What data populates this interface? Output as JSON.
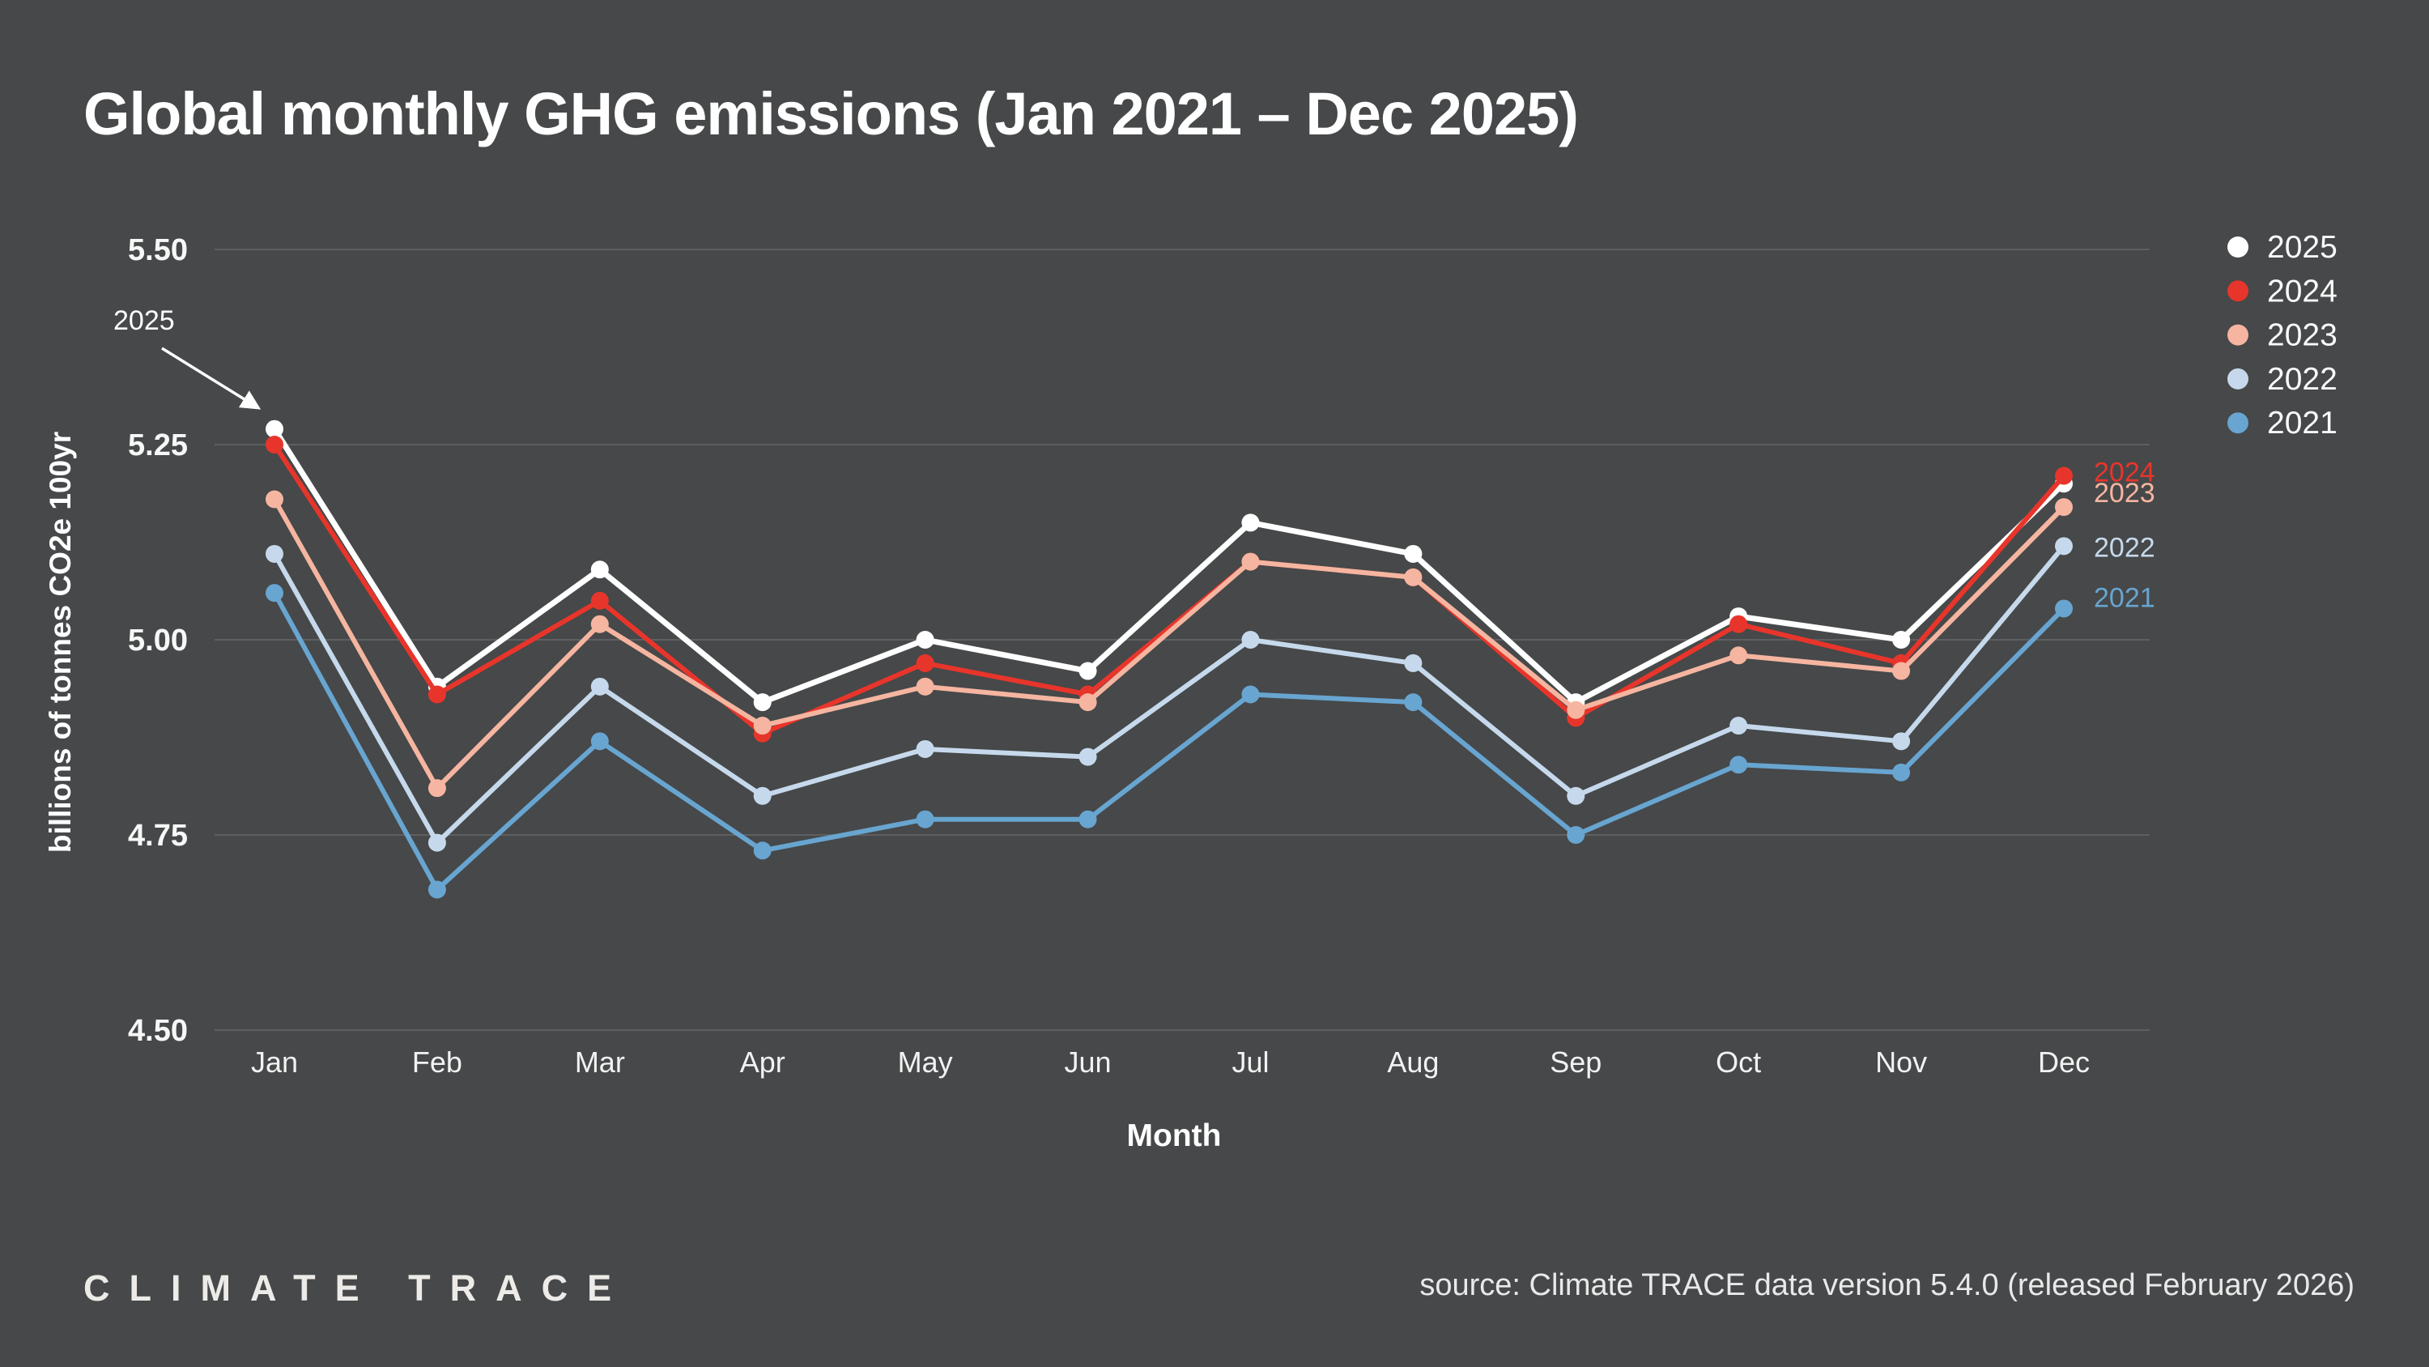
{
  "page": {
    "background": "#464849",
    "gridline_color": "#5d5f61"
  },
  "chart_data": {
    "type": "line",
    "title": "Global monthly GHG emissions (Jan 2021 – Dec 2025)",
    "xlabel": "Month",
    "ylabel": "billions of tonnes CO2e 100yr",
    "categories": [
      "Jan",
      "Feb",
      "Mar",
      "Apr",
      "May",
      "Jun",
      "Jul",
      "Aug",
      "Sep",
      "Oct",
      "Nov",
      "Dec"
    ],
    "ytick_labels": [
      "5.50",
      "5.25",
      "5.00",
      "4.75",
      "4.50"
    ],
    "ylim": [
      4.5,
      5.5
    ],
    "grid": "horizontal",
    "legend_position": "top-right",
    "series": [
      {
        "name": "2025",
        "color": "#ffffff",
        "values": [
          5.27,
          4.94,
          5.09,
          4.92,
          5.0,
          4.96,
          5.15,
          5.11,
          4.92,
          5.03,
          5.0,
          5.2
        ]
      },
      {
        "name": "2024",
        "color": "#e8352b",
        "values": [
          5.25,
          4.93,
          5.05,
          4.88,
          4.97,
          4.93,
          5.1,
          5.08,
          4.9,
          5.02,
          4.97,
          5.21
        ]
      },
      {
        "name": "2023",
        "color": "#f5b5a0",
        "values": [
          5.18,
          4.81,
          5.02,
          4.89,
          4.94,
          4.92,
          5.1,
          5.08,
          4.91,
          4.98,
          4.96,
          5.17
        ]
      },
      {
        "name": "2022",
        "color": "#c6d9ec",
        "values": [
          5.11,
          4.74,
          4.94,
          4.8,
          4.86,
          4.85,
          5.0,
          4.97,
          4.8,
          4.89,
          4.87,
          5.12
        ]
      },
      {
        "name": "2021",
        "color": "#68a5d0",
        "values": [
          5.06,
          4.68,
          4.87,
          4.73,
          4.77,
          4.77,
          4.93,
          4.92,
          4.75,
          4.84,
          4.83,
          5.04
        ]
      }
    ],
    "end_line_labels": [
      "2024",
      "2023",
      "2022",
      "2021"
    ],
    "annotation": {
      "text": "2025"
    }
  },
  "footer": {
    "logo_text": "CLIMATE TRACE",
    "source": "source: Climate TRACE data version 5.4.0 (released February 2026)"
  }
}
